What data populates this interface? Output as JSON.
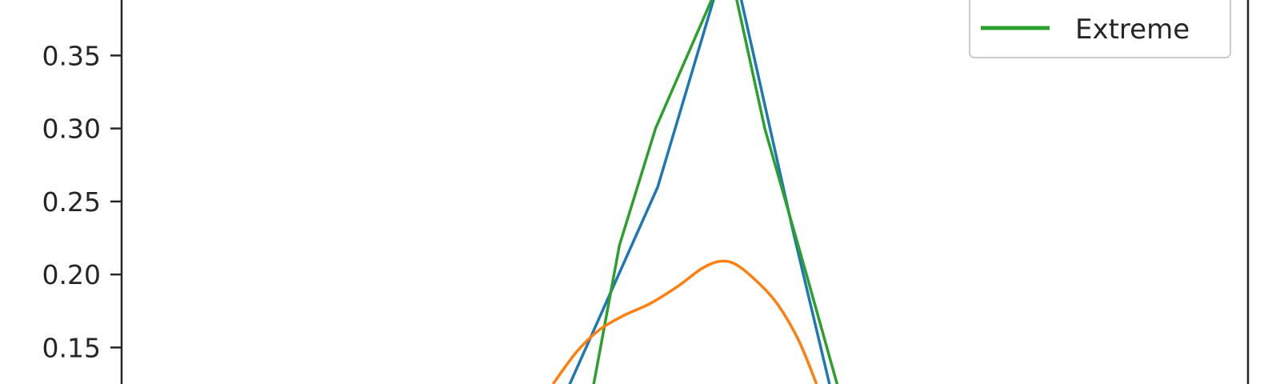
{
  "chart_data": {
    "type": "line",
    "ylim": [
      0.125,
      0.388
    ],
    "xlim": [
      0,
      1
    ],
    "yticks": [
      0.15,
      0.2,
      0.25,
      0.3,
      0.35
    ],
    "ytick_labels": [
      "0.15",
      "0.20",
      "0.25",
      "0.30",
      "0.35"
    ],
    "legend": {
      "placement": "top-right",
      "visible_entries": [
        "Extreme"
      ]
    },
    "series": [
      {
        "color": "#1f77b4",
        "points": [
          [
            0.395,
            0.12
          ],
          [
            0.476,
            0.26
          ],
          [
            0.527,
            0.392
          ],
          [
            0.549,
            0.392
          ],
          [
            0.596,
            0.23
          ],
          [
            0.63,
            0.12
          ]
        ]
      },
      {
        "name": "Extreme",
        "color": "#2ca02c",
        "points": [
          [
            0.418,
            0.12
          ],
          [
            0.442,
            0.22
          ],
          [
            0.474,
            0.3
          ],
          [
            0.526,
            0.392
          ],
          [
            0.545,
            0.392
          ],
          [
            0.571,
            0.3
          ],
          [
            0.608,
            0.2
          ],
          [
            0.637,
            0.12
          ]
        ]
      },
      {
        "color": "#ff7f0e",
        "points": [
          [
            0.383,
            0.125
          ],
          [
            0.404,
            0.147
          ],
          [
            0.424,
            0.162
          ],
          [
            0.446,
            0.172
          ],
          [
            0.469,
            0.18
          ],
          [
            0.494,
            0.192
          ],
          [
            0.515,
            0.204
          ],
          [
            0.531,
            0.209
          ],
          [
            0.545,
            0.207
          ],
          [
            0.563,
            0.196
          ],
          [
            0.582,
            0.18
          ],
          [
            0.601,
            0.155
          ],
          [
            0.617,
            0.125
          ]
        ]
      }
    ]
  }
}
